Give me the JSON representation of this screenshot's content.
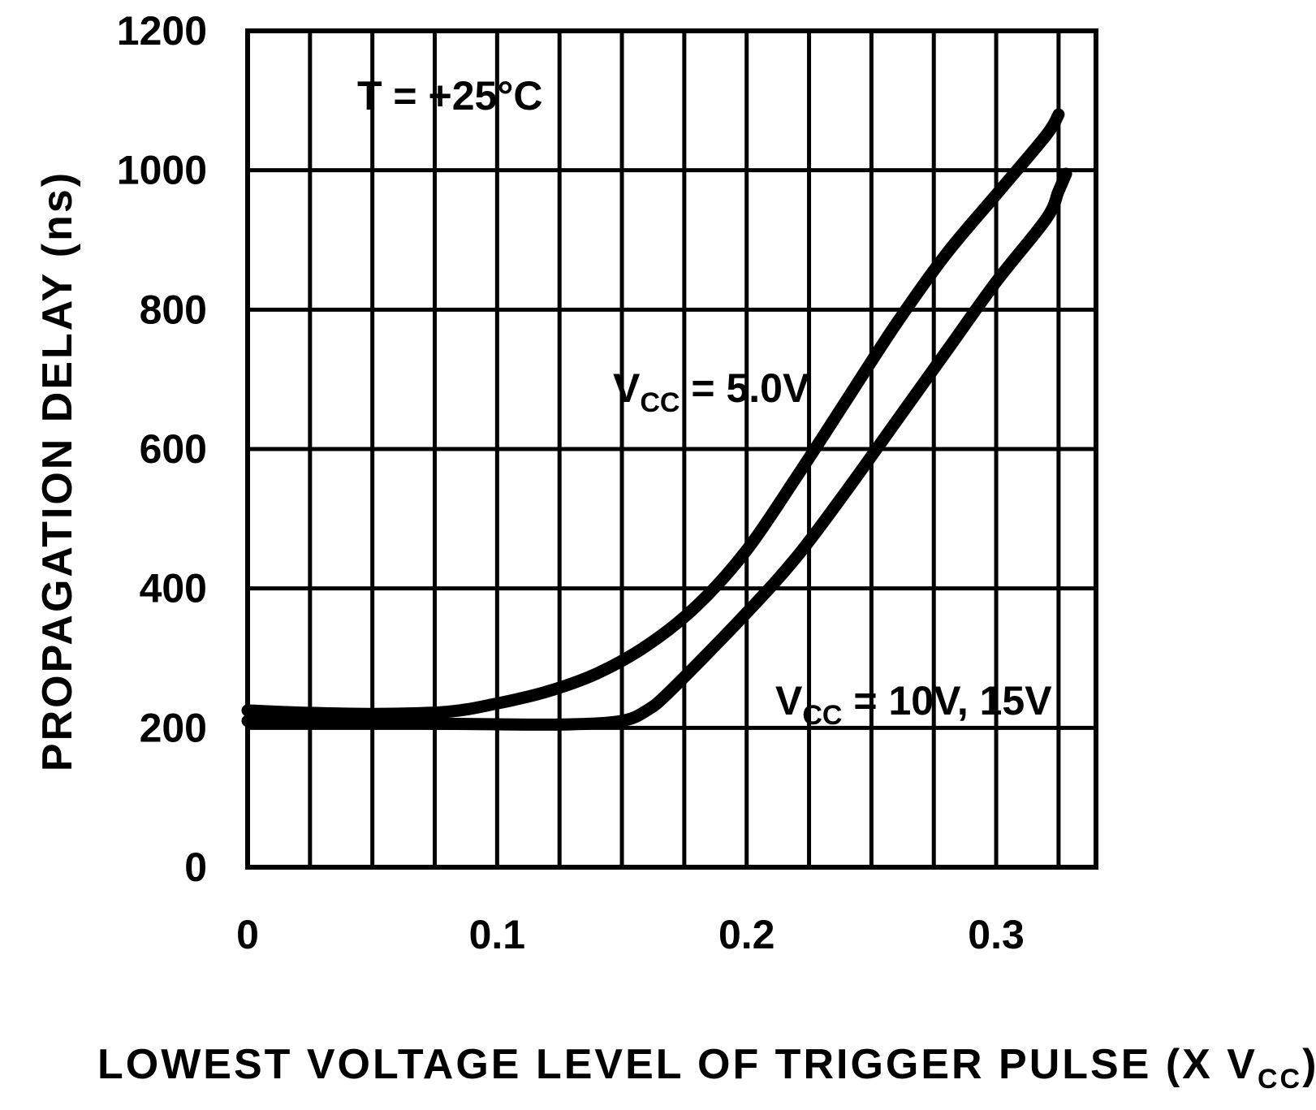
{
  "chart_data": {
    "type": "line",
    "xlabel": "LOWEST VOLTAGE LEVEL OF TRIGGER PULSE",
    "xlabel_suffix": "(X V",
    "xlabel_suffix_sub": "CC",
    "xlabel_suffix_end": ")",
    "ylabel": "PROPAGATION DELAY (ns)",
    "xlim": [
      0,
      0.34
    ],
    "ylim": [
      0,
      1200
    ],
    "x_ticks": [
      0,
      0.1,
      0.2,
      0.3
    ],
    "x_tick_labels": [
      "0",
      "0.1",
      "0.2",
      "0.3"
    ],
    "y_ticks": [
      0,
      200,
      400,
      600,
      800,
      1000,
      1200
    ],
    "y_tick_labels": [
      "0",
      "200",
      "400",
      "600",
      "800",
      "1000",
      "1200"
    ],
    "grid": true,
    "annotations": {
      "temperature": "T = +25°C",
      "series_label_1_main": "V",
      "series_label_1_sub": "CC",
      "series_label_1_rest": " = 5.0V",
      "series_label_2_main": "V",
      "series_label_2_sub": "CC",
      "series_label_2_rest": " = 10V, 15V"
    },
    "series": [
      {
        "x": [
          0,
          0.02,
          0.05,
          0.08,
          0.1,
          0.12,
          0.14,
          0.16,
          0.18,
          0.2,
          0.22,
          0.24,
          0.26,
          0.28,
          0.3,
          0.32,
          0.325
        ],
        "values": [
          225,
          222,
          220,
          223,
          235,
          252,
          278,
          318,
          375,
          455,
          560,
          670,
          780,
          880,
          965,
          1050,
          1080
        ]
      },
      {
        "x": [
          0,
          0.05,
          0.1,
          0.13,
          0.15,
          0.16,
          0.17,
          0.2,
          0.22,
          0.24,
          0.26,
          0.28,
          0.3,
          0.32,
          0.325,
          0.328
        ],
        "values": [
          210,
          207,
          205,
          205,
          210,
          225,
          255,
          365,
          445,
          540,
          640,
          740,
          840,
          930,
          970,
          995
        ]
      }
    ]
  }
}
